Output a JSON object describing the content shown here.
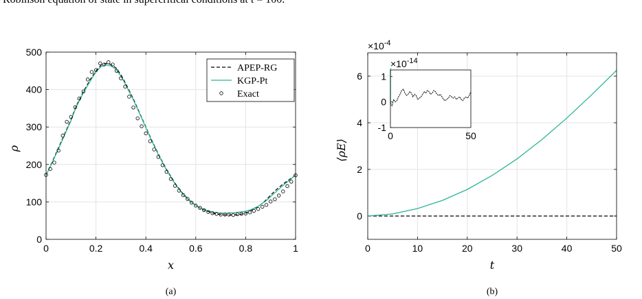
{
  "caption_fragment": "Robinson equation of state in supercritical conditions at t = 100.",
  "colors": {
    "apep": "#000000",
    "kgp": "#2bb596",
    "exact": "#000000",
    "grid": "#e3e3e3"
  },
  "chart_data": [
    {
      "type": "line",
      "panel_label": "(a)",
      "xlabel": "x",
      "ylabel": "ρ",
      "xlim": [
        0,
        1
      ],
      "ylim": [
        0,
        500
      ],
      "xticks": [
        "0",
        "0.2",
        "0.4",
        "0.6",
        "0.8",
        "1"
      ],
      "yticks": [
        "0",
        "100",
        "200",
        "300",
        "400",
        "500"
      ],
      "grid": true,
      "legend_position": "top-right",
      "series": [
        {
          "name": "APEP-RG",
          "style": "dashed",
          "x": [
            0,
            0.02,
            0.05,
            0.08,
            0.1,
            0.12,
            0.15,
            0.18,
            0.2,
            0.22,
            0.24,
            0.26,
            0.28,
            0.3,
            0.32,
            0.35,
            0.38,
            0.4,
            0.42,
            0.45,
            0.48,
            0.5,
            0.52,
            0.55,
            0.58,
            0.6,
            0.62,
            0.65,
            0.68,
            0.7,
            0.72,
            0.75,
            0.78,
            0.8,
            0.82,
            0.85,
            0.88,
            0.9,
            0.92,
            0.95,
            0.98,
            1
          ],
          "y": [
            172,
            200,
            245,
            290,
            320,
            355,
            395,
            430,
            450,
            465,
            470,
            467,
            458,
            440,
            415,
            375,
            330,
            300,
            270,
            228,
            190,
            168,
            147,
            121,
            101,
            91,
            82,
            74,
            68,
            66,
            65,
            65,
            67,
            70,
            76,
            87,
            104,
            118,
            131,
            148,
            162,
            172
          ]
        },
        {
          "name": "KGP-Pt",
          "style": "solid",
          "x": [
            0,
            0.02,
            0.05,
            0.08,
            0.1,
            0.12,
            0.15,
            0.18,
            0.2,
            0.22,
            0.24,
            0.26,
            0.28,
            0.3,
            0.32,
            0.35,
            0.38,
            0.4,
            0.42,
            0.45,
            0.48,
            0.5,
            0.52,
            0.55,
            0.58,
            0.6,
            0.62,
            0.65,
            0.68,
            0.7,
            0.72,
            0.75,
            0.78,
            0.8,
            0.82,
            0.85,
            0.88,
            0.9,
            0.92,
            0.95,
            0.98,
            1
          ],
          "y": [
            172,
            198,
            242,
            287,
            317,
            352,
            392,
            426,
            447,
            461,
            466,
            463,
            454,
            436,
            412,
            372,
            328,
            298,
            268,
            226,
            188,
            166,
            145,
            119,
            100,
            91,
            83,
            76,
            71,
            70,
            70,
            71,
            73,
            75,
            79,
            88,
            102,
            114,
            126,
            144,
            160,
            172
          ]
        },
        {
          "name": "Exact",
          "style": "markers",
          "x": [
            0,
            0.017,
            0.033,
            0.05,
            0.067,
            0.083,
            0.1,
            0.117,
            0.133,
            0.15,
            0.167,
            0.183,
            0.2,
            0.217,
            0.233,
            0.25,
            0.267,
            0.283,
            0.3,
            0.317,
            0.333,
            0.35,
            0.367,
            0.383,
            0.4,
            0.417,
            0.433,
            0.45,
            0.467,
            0.483,
            0.5,
            0.517,
            0.533,
            0.55,
            0.567,
            0.583,
            0.6,
            0.617,
            0.633,
            0.65,
            0.667,
            0.683,
            0.7,
            0.717,
            0.733,
            0.75,
            0.767,
            0.783,
            0.8,
            0.817,
            0.833,
            0.85,
            0.867,
            0.883,
            0.9,
            0.917,
            0.933,
            0.95,
            0.967,
            0.983,
            1
          ],
          "y": [
            172,
            188,
            205,
            237,
            277,
            314,
            327,
            353,
            376,
            395,
            427,
            447,
            452,
            470,
            467,
            473,
            467,
            450,
            430,
            408,
            381,
            352,
            323,
            302,
            283,
            262,
            240,
            220,
            198,
            180,
            161,
            143,
            130,
            118,
            108,
            98,
            90,
            84,
            78,
            73,
            70,
            68,
            66,
            66,
            66,
            65,
            67,
            68,
            69,
            72,
            76,
            81,
            87,
            92,
            101,
            107,
            117,
            128,
            142,
            154,
            171
          ]
        }
      ]
    },
    {
      "type": "line",
      "panel_label": "(b)",
      "xlabel": "t",
      "ylabel": "⟨ρE⟩",
      "exponent_label": "×10",
      "exponent_power": "-4",
      "xlim": [
        0,
        50
      ],
      "ylim": [
        -1,
        7
      ],
      "xticks": [
        "0",
        "10",
        "20",
        "30",
        "40",
        "50"
      ],
      "yticks": [
        "0",
        "2",
        "4",
        "6"
      ],
      "grid": true,
      "series": [
        {
          "name": "APEP-RG",
          "style": "dashed",
          "x": [
            0,
            50
          ],
          "y": [
            0,
            0
          ]
        },
        {
          "name": "KGP-Pt",
          "style": "solid",
          "x": [
            0,
            5,
            10,
            15,
            20,
            25,
            30,
            35,
            40,
            45,
            50
          ],
          "y": [
            0,
            0.09,
            0.32,
            0.67,
            1.14,
            1.74,
            2.45,
            3.28,
            4.2,
            5.2,
            6.25
          ]
        }
      ],
      "inset": {
        "exponent_label": "×10",
        "exponent_power": "-14",
        "xlim": [
          0,
          50
        ],
        "ylim": [
          -1,
          1.25
        ],
        "xticks": [
          "0",
          "50"
        ],
        "yticks": [
          "-1",
          "0",
          "1"
        ],
        "series": [
          {
            "name": "KGP-Pt",
            "style": "solid",
            "x": [
              0,
              0.05,
              0.15,
              0.3
            ],
            "y": [
              -0.05,
              1.3,
              1.3,
              1.3
            ]
          },
          {
            "name": "APEP-RG",
            "style": "dashed",
            "x": [
              0,
              1,
              2,
              3,
              4,
              5,
              6,
              7,
              8,
              9,
              10,
              11,
              12,
              13,
              14,
              15,
              16,
              17,
              18,
              19,
              20,
              21,
              22,
              23,
              24,
              25,
              26,
              27,
              28,
              29,
              30,
              31,
              32,
              33,
              34,
              35,
              36,
              37,
              38,
              39,
              40,
              41,
              42,
              43,
              44,
              45,
              46,
              47,
              48,
              49,
              50
            ],
            "y": [
              -0.05,
              -0.15,
              0.1,
              0.0,
              0.05,
              0.2,
              0.3,
              0.45,
              0.5,
              0.35,
              0.25,
              0.3,
              0.4,
              0.35,
              0.2,
              0.3,
              0.25,
              0.1,
              0.15,
              0.2,
              0.3,
              0.4,
              0.35,
              0.45,
              0.4,
              0.3,
              0.35,
              0.45,
              0.4,
              0.3,
              0.25,
              0.3,
              0.2,
              0.1,
              0.05,
              0.1,
              0.15,
              0.25,
              0.2,
              0.15,
              0.2,
              0.1,
              0.15,
              0.2,
              0.1,
              0.05,
              0.15,
              0.2,
              0.15,
              0.25,
              0.4
            ]
          }
        ]
      }
    }
  ]
}
